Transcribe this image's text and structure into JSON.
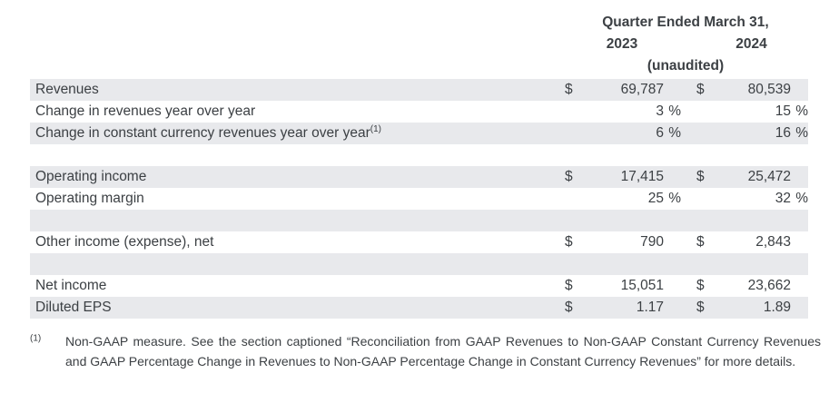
{
  "colors": {
    "stripe": "#e8e9ec",
    "text": "#3c4044"
  },
  "header": {
    "period_title": "Quarter Ended March 31,",
    "year_left": "2023",
    "year_right": "2024",
    "unaudited_note": "(unaudited)"
  },
  "table": {
    "columns": [
      "2023",
      "2024"
    ],
    "rows": [
      {
        "label": "Revenues",
        "d1": "$",
        "v1": "69,787",
        "d2": "$",
        "v2": "80,539"
      },
      {
        "label": "Change in revenues year over year",
        "v1": "3",
        "u1": "%",
        "v2": "15",
        "u2": "%"
      },
      {
        "label": "Change in constant currency revenues year over year",
        "sup": "(1)",
        "v1": "6",
        "u1": "%",
        "v2": "16",
        "u2": "%"
      },
      {
        "label": "Operating income",
        "d1": "$",
        "v1": "17,415",
        "d2": "$",
        "v2": "25,472"
      },
      {
        "label": "Operating margin",
        "v1": "25",
        "u1": "%",
        "v2": "32",
        "u2": "%"
      },
      {
        "label": "Other income (expense), net",
        "d1": "$",
        "v1": "790",
        "d2": "$",
        "v2": "2,843"
      },
      {
        "label": "Net income",
        "d1": "$",
        "v1": "15,051",
        "d2": "$",
        "v2": "23,662"
      },
      {
        "label": "Diluted EPS",
        "d1": "$",
        "v1": "1.17",
        "d2": "$",
        "v2": "1.89"
      }
    ]
  },
  "footnote": {
    "marker": "(1)",
    "text": "Non-GAAP measure. See the section captioned “Reconciliation from GAAP Revenues to Non-GAAP Constant Currency Revenues and GAAP Percentage Change in Revenues to Non-GAAP Percentage Change in Constant Currency Revenues” for more details."
  }
}
